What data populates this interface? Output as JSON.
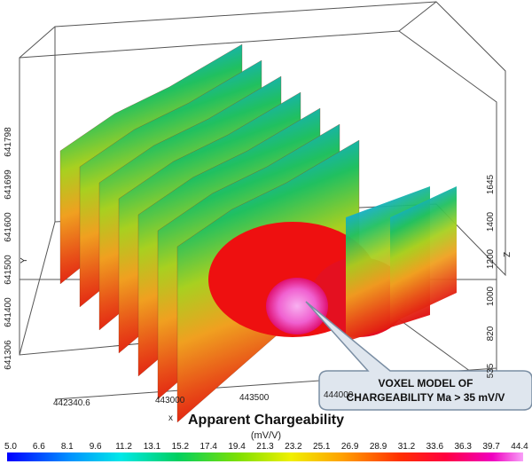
{
  "x_axis": {
    "label": "x",
    "ticks": [
      "442340.6",
      "443000",
      "443500",
      "444000"
    ]
  },
  "y_axis": {
    "label": "Y",
    "ticks": [
      "641306",
      "641400",
      "641500",
      "641600",
      "641699",
      "641798"
    ]
  },
  "z_axis": {
    "label": "Z",
    "ticks": [
      "535",
      "820",
      "1000",
      "1200",
      "1400",
      "1645"
    ]
  },
  "callout": {
    "lines": [
      "VOXEL MODEL OF",
      "CHARGEABILITY Ma > 35 mV/V"
    ]
  },
  "legend": {
    "title": "Apparent Chargeability",
    "unit": "(mV/V)",
    "labels": [
      "5.0",
      "6.6",
      "8.1",
      "9.6",
      "11.2",
      "13.1",
      "15.2",
      "17.4",
      "19.4",
      "21.3",
      "23.2",
      "25.1",
      "26.9",
      "28.9",
      "31.2",
      "33.6",
      "36.3",
      "39.7",
      "44.4"
    ]
  }
}
